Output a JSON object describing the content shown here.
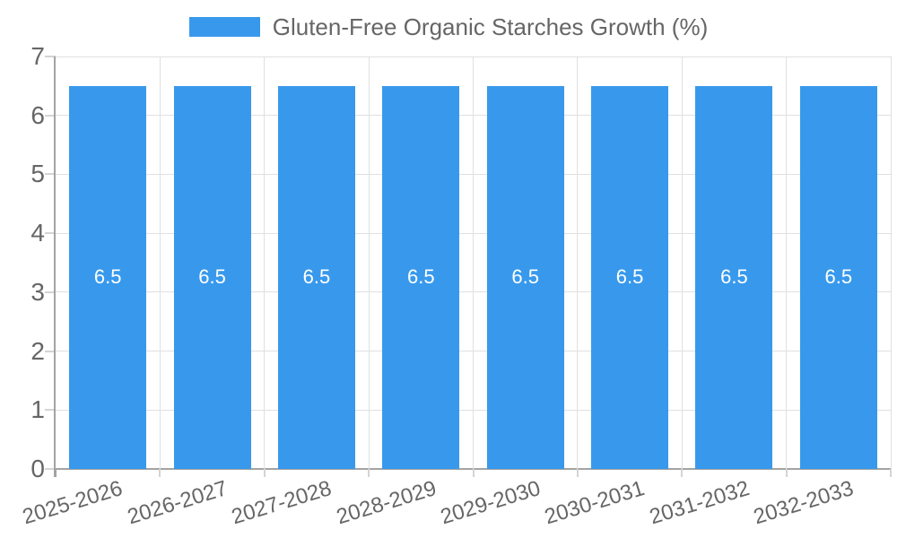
{
  "chart_data": {
    "type": "bar",
    "title": "Gluten-Free Organic Starches Growth (%)",
    "categories": [
      "2025-2026",
      "2026-2027",
      "2027-2028",
      "2028-2029",
      "2029-2030",
      "2030-2031",
      "2031-2032",
      "2032-2033"
    ],
    "series": [
      {
        "name": "Gluten-Free Organic Starches Growth (%)",
        "values": [
          6.5,
          6.5,
          6.5,
          6.5,
          6.5,
          6.5,
          6.5,
          6.5
        ]
      }
    ],
    "bar_value_labels": [
      "6.5",
      "6.5",
      "6.5",
      "6.5",
      "6.5",
      "6.5",
      "6.5",
      "6.5"
    ],
    "xlabel": "",
    "ylabel": "",
    "ylim": [
      0,
      7
    ],
    "yticks": [
      0,
      1,
      2,
      3,
      4,
      5,
      6,
      7
    ],
    "grid": true,
    "legend_position": "top-center",
    "x_tick_rotation_deg": -17,
    "colors": {
      "bar": "#3899ec",
      "bar_value_label": "#ffffff",
      "axis_text": "#666666",
      "legend_text": "#666666",
      "gridline": "#e0e0e0",
      "axis_line": "#a3a3a3",
      "tick": "#d4d4d4",
      "background": "#ffffff"
    }
  }
}
